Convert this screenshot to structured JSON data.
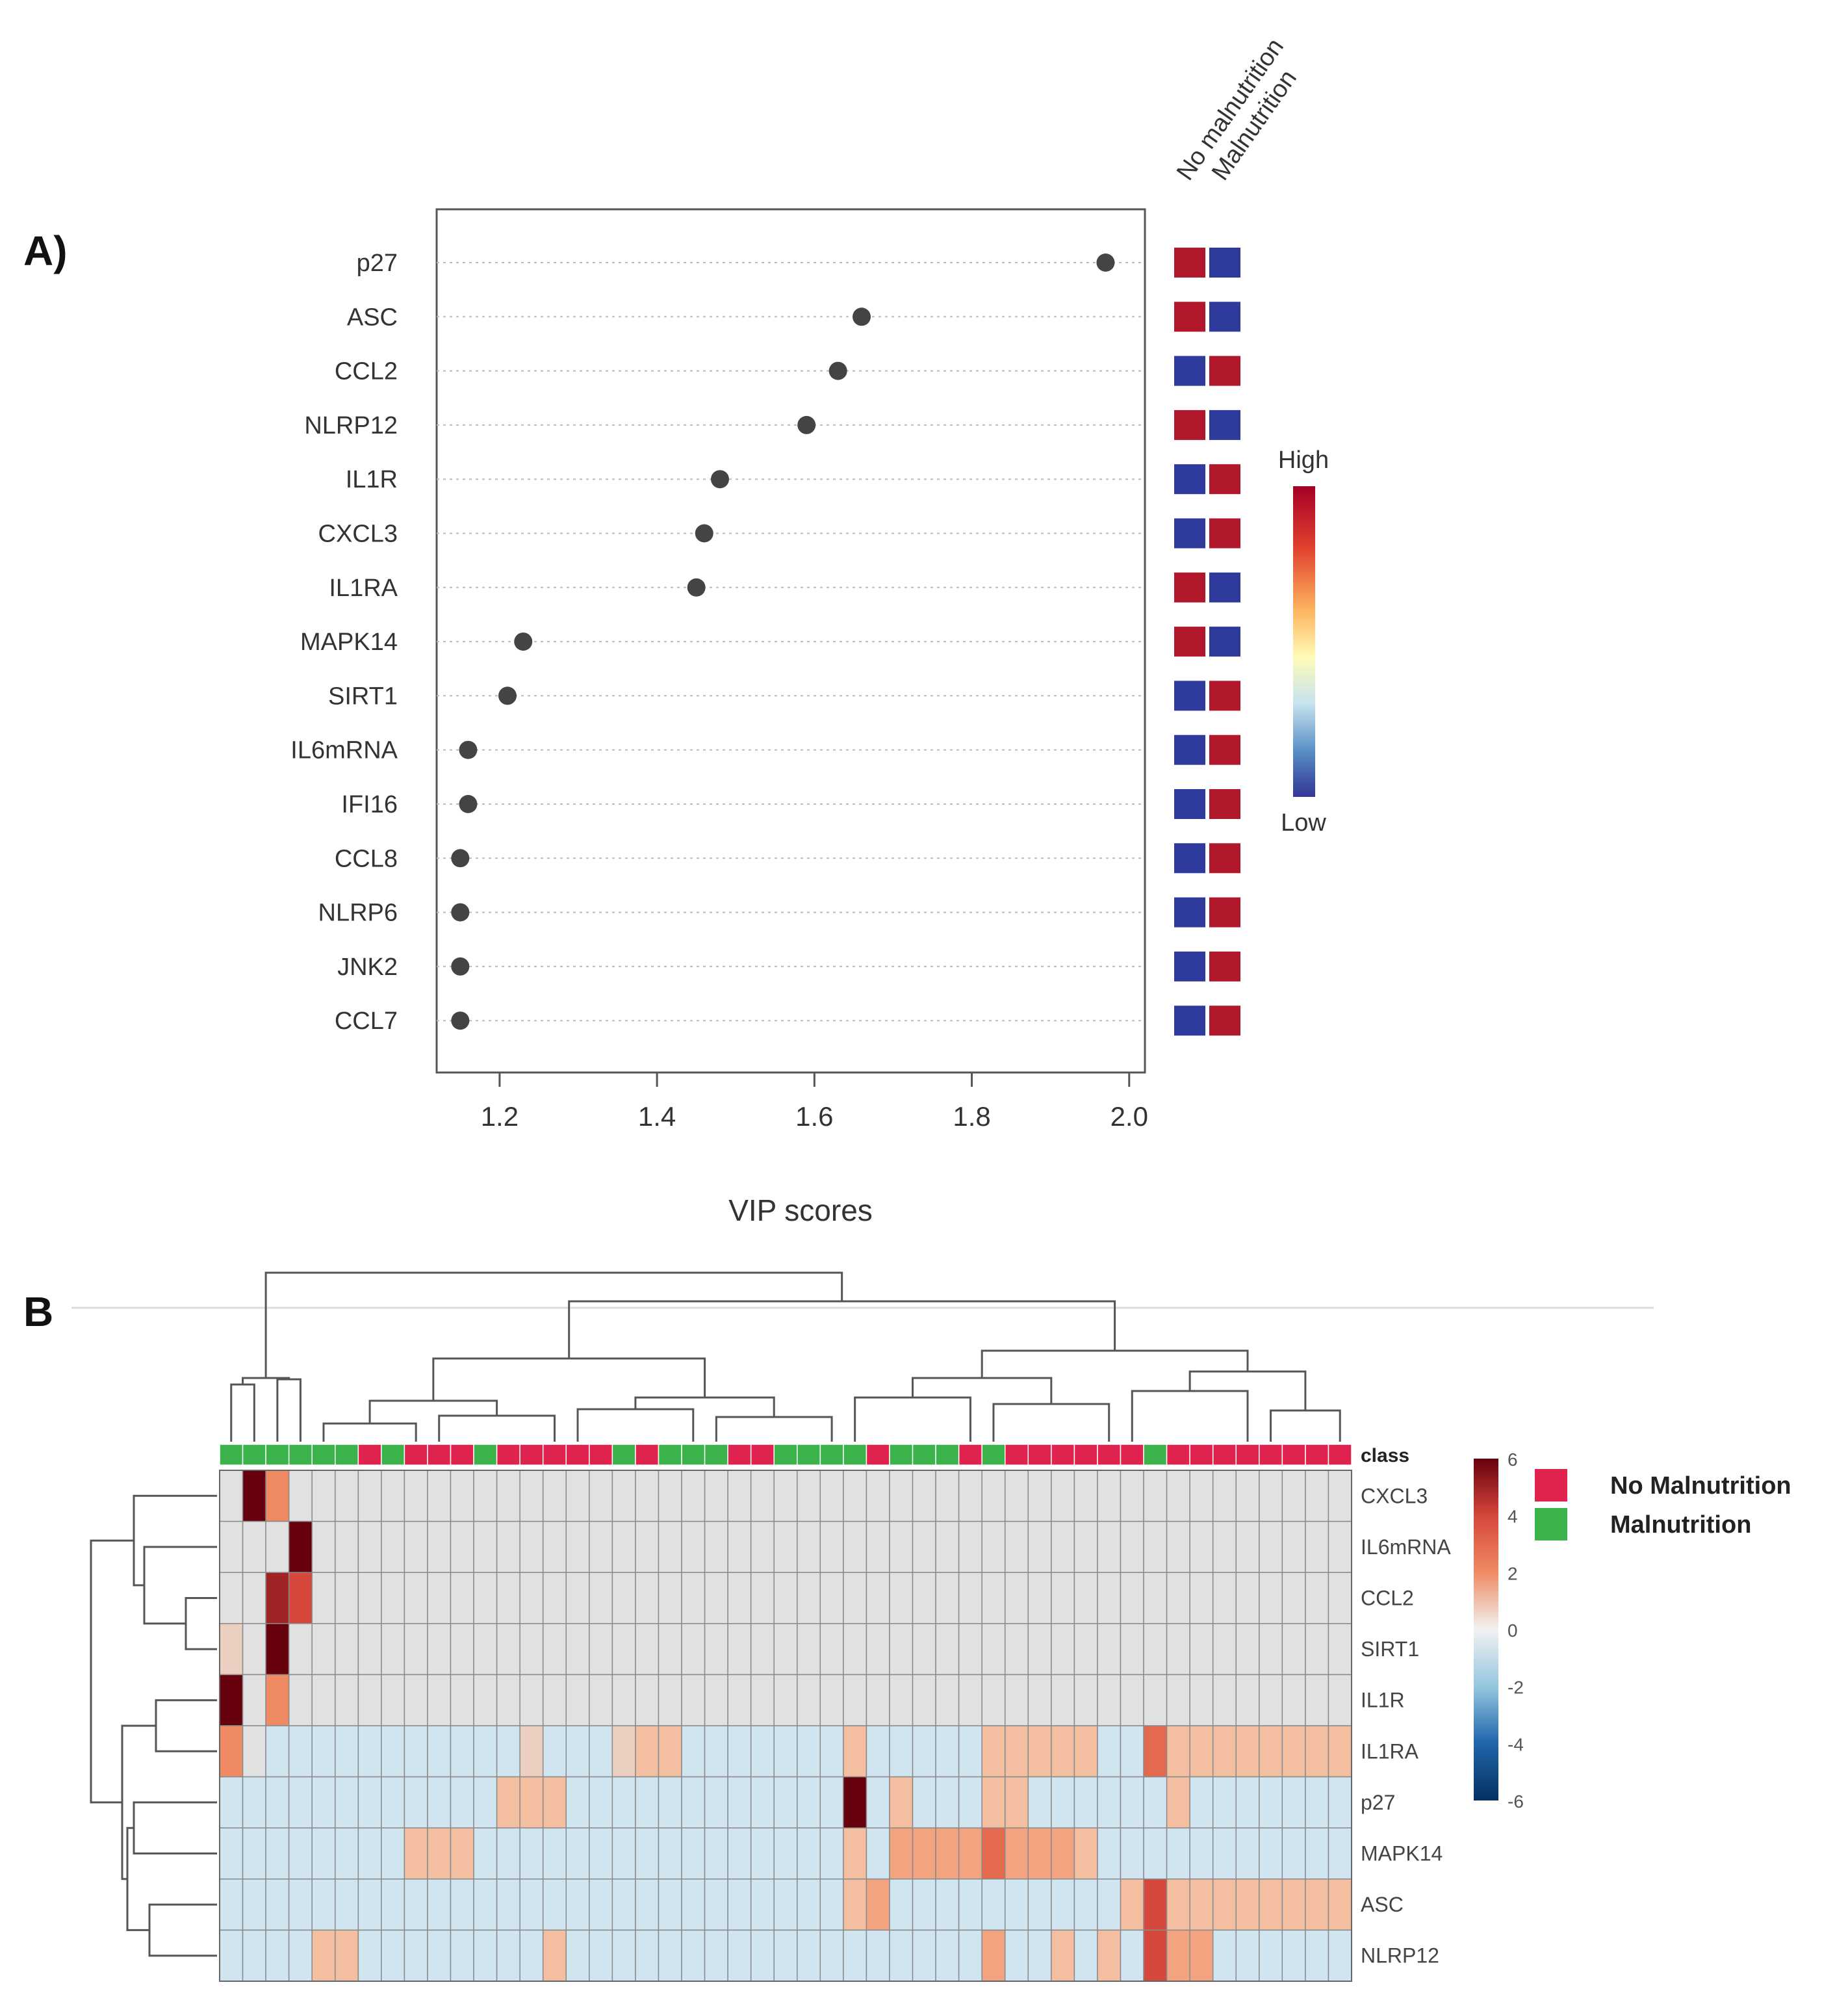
{
  "panel_a_label": "A)",
  "panel_b_label": "B",
  "colors": {
    "high": "#B2182B",
    "low": "#2E3A9C",
    "dot": "#444444",
    "malnutrition": "#3CB34A",
    "no_malnutrition": "#E0234E"
  },
  "chart_data": [
    {
      "type": "scatter",
      "title": "",
      "xlabel": "VIP scores",
      "ylabel": "",
      "xlim": [
        1.12,
        2.02
      ],
      "xticks": [
        1.2,
        1.4,
        1.6,
        1.8,
        2.0
      ],
      "xtick_labels": [
        "1.2",
        "1.4",
        "1.6",
        "1.8",
        "2.0"
      ],
      "grid": "dotted horizontal",
      "features": [
        "p27",
        "ASC",
        "CCL2",
        "NLRP12",
        "IL1R",
        "CXCL3",
        "IL1RA",
        "MAPK14",
        "SIRT1",
        "IL6mRNA",
        "IFI16",
        "CCL8",
        "NLRP6",
        "JNK2",
        "CCL7"
      ],
      "values": [
        1.97,
        1.66,
        1.63,
        1.59,
        1.48,
        1.46,
        1.45,
        1.23,
        1.21,
        1.16,
        1.16,
        1.15,
        1.15,
        1.15,
        1.15
      ],
      "group_columns": [
        "No malnutrition",
        "Malnutrition"
      ],
      "group_levels": [
        [
          "High",
          "Low"
        ],
        [
          "High",
          "Low"
        ],
        [
          "Low",
          "High"
        ],
        [
          "High",
          "Low"
        ],
        [
          "Low",
          "High"
        ],
        [
          "Low",
          "High"
        ],
        [
          "High",
          "Low"
        ],
        [
          "High",
          "Low"
        ],
        [
          "Low",
          "High"
        ],
        [
          "Low",
          "High"
        ],
        [
          "Low",
          "High"
        ],
        [
          "Low",
          "High"
        ],
        [
          "Low",
          "High"
        ],
        [
          "Low",
          "High"
        ],
        [
          "Low",
          "High"
        ]
      ],
      "colorbar": {
        "high_label": "High",
        "low_label": "Low"
      }
    },
    {
      "type": "heatmap",
      "title": "",
      "rows": [
        "CXCL3",
        "IL6mRNA",
        "CCL2",
        "SIRT1",
        "IL1R",
        "IL1RA",
        "p27",
        "MAPK14",
        "ASC",
        "NLRP12"
      ],
      "class_row_label": "class",
      "class_legend": [
        "No Malnutrition",
        "Malnutrition"
      ],
      "colorbar_ticks": [
        6,
        4,
        2,
        0,
        -2,
        -4,
        -6
      ],
      "colorbar_tick_labels": [
        "6",
        "4",
        "2",
        "0",
        "-2",
        "-4",
        "-6"
      ],
      "class_strip": "MMMMMMNMNNNMNNNNNMNMMMNNMMMMNMMMNMNNNNNNMNNNNNNNN",
      "values": [
        [
          0,
          6,
          2,
          0,
          0,
          0,
          0,
          0,
          0,
          0,
          0,
          0,
          0,
          0,
          0,
          0,
          0,
          0,
          0,
          0,
          0,
          0,
          0,
          0,
          0,
          0,
          0,
          0,
          0,
          0,
          0,
          0,
          0,
          0,
          0,
          0,
          0,
          0,
          0,
          0,
          0,
          0,
          0,
          0,
          0,
          0,
          0,
          0,
          0
        ],
        [
          0,
          0,
          0,
          6,
          0,
          0,
          0,
          0,
          0,
          0,
          0,
          0,
          0,
          0,
          0,
          0,
          0,
          0,
          0,
          0,
          0,
          0,
          0,
          0,
          0,
          0,
          0,
          0,
          0,
          0,
          0,
          0,
          0,
          0,
          0,
          0,
          0,
          0,
          0,
          0,
          0,
          0,
          0,
          0,
          0,
          0,
          0,
          0,
          0
        ],
        [
          0,
          0,
          5,
          4,
          0,
          0,
          0,
          0,
          0,
          0,
          0,
          0,
          0,
          0,
          0,
          0,
          0,
          0,
          0,
          0,
          0,
          0,
          0,
          0,
          0,
          0,
          0,
          0,
          0,
          0,
          0,
          0,
          0,
          0,
          0,
          0,
          0,
          0,
          0,
          0,
          0,
          0,
          0,
          0,
          0,
          0,
          0,
          0,
          0
        ],
        [
          0.5,
          0,
          6,
          0,
          0,
          0,
          0,
          0,
          0,
          0,
          0,
          0,
          0,
          0,
          0,
          0,
          0,
          0,
          0,
          0,
          0,
          0,
          0,
          0,
          0,
          0,
          0,
          0,
          0,
          0,
          0,
          0,
          0,
          0,
          0,
          0,
          0,
          0,
          0,
          0,
          0,
          0,
          0,
          0,
          0,
          0,
          0,
          0,
          0
        ],
        [
          6,
          0,
          2,
          0,
          0,
          0,
          0,
          0,
          0,
          0,
          0,
          0,
          0,
          0,
          0,
          0,
          0,
          0,
          0,
          0,
          0,
          0,
          0,
          0,
          0,
          0,
          0,
          0,
          0,
          0,
          0,
          0,
          0,
          0,
          0,
          0,
          0,
          0,
          0,
          0,
          0,
          0,
          0,
          0,
          0,
          0,
          0,
          0,
          0
        ],
        [
          2,
          0,
          -1,
          -1,
          -1,
          -1,
          -1,
          -1,
          -1,
          -1,
          -1,
          -1,
          -1,
          0.5,
          -1,
          -1,
          -1,
          0.5,
          1,
          1,
          -1,
          -1,
          -1,
          -1,
          -1,
          -1,
          -1,
          1,
          -1,
          -1,
          -1,
          -1,
          -1,
          1,
          1,
          1,
          1,
          1,
          -1,
          -1,
          3,
          1,
          1,
          1,
          1,
          1,
          1,
          1,
          1
        ],
        [
          -1,
          -1,
          -1,
          -1,
          -1,
          -1,
          -1,
          -1,
          -1,
          -1,
          -1,
          -1,
          1,
          1,
          1,
          -1,
          -1,
          -1,
          -1,
          -1,
          -1,
          -1,
          -1,
          -1,
          -1,
          -1,
          -1,
          6,
          -1,
          1,
          -1,
          -1,
          -1,
          1,
          1,
          -1,
          -1,
          -1,
          -1,
          -1,
          -1,
          1,
          -1,
          -1,
          -1,
          -1,
          -1,
          -1,
          -1
        ],
        [
          -1,
          -1,
          -1,
          -1,
          -1,
          -1,
          -1,
          -1,
          1,
          1,
          1,
          -1,
          -1,
          -1,
          -1,
          -1,
          -1,
          -1,
          -1,
          -1,
          -1,
          -1,
          -1,
          -1,
          -1,
          -1,
          -1,
          1,
          -1,
          1.5,
          1.5,
          1.5,
          1.5,
          3,
          1.5,
          1.5,
          1.5,
          1,
          -1,
          -1,
          -1,
          -1,
          -1,
          -1,
          -1,
          -1,
          -1,
          -1,
          -1
        ],
        [
          -1,
          -1,
          -1,
          -1,
          -1,
          -1,
          -1,
          -1,
          -1,
          -1,
          -1,
          -1,
          -1,
          -1,
          -1,
          -1,
          -1,
          -1,
          -1,
          -1,
          -1,
          -1,
          -1,
          -1,
          -1,
          -1,
          -1,
          1,
          1.5,
          -1,
          -1,
          -1,
          -1,
          -1,
          -1,
          -1,
          -1,
          -1,
          -1,
          1,
          4,
          1,
          1,
          1,
          1,
          1,
          1,
          1,
          1
        ],
        [
          -1,
          -1,
          -1,
          -1,
          1,
          1,
          -1,
          -1,
          -1,
          -1,
          -1,
          -1,
          -1,
          -1,
          1,
          -1,
          -1,
          -1,
          -1,
          -1,
          -1,
          -1,
          -1,
          -1,
          -1,
          -1,
          -1,
          -1,
          -1,
          -1,
          -1,
          -1,
          -1,
          1.5,
          -1,
          -1,
          1,
          -1,
          1,
          -1,
          4,
          1.5,
          1.5,
          -1,
          -1,
          -1,
          -1,
          -1,
          -1
        ]
      ]
    }
  ]
}
